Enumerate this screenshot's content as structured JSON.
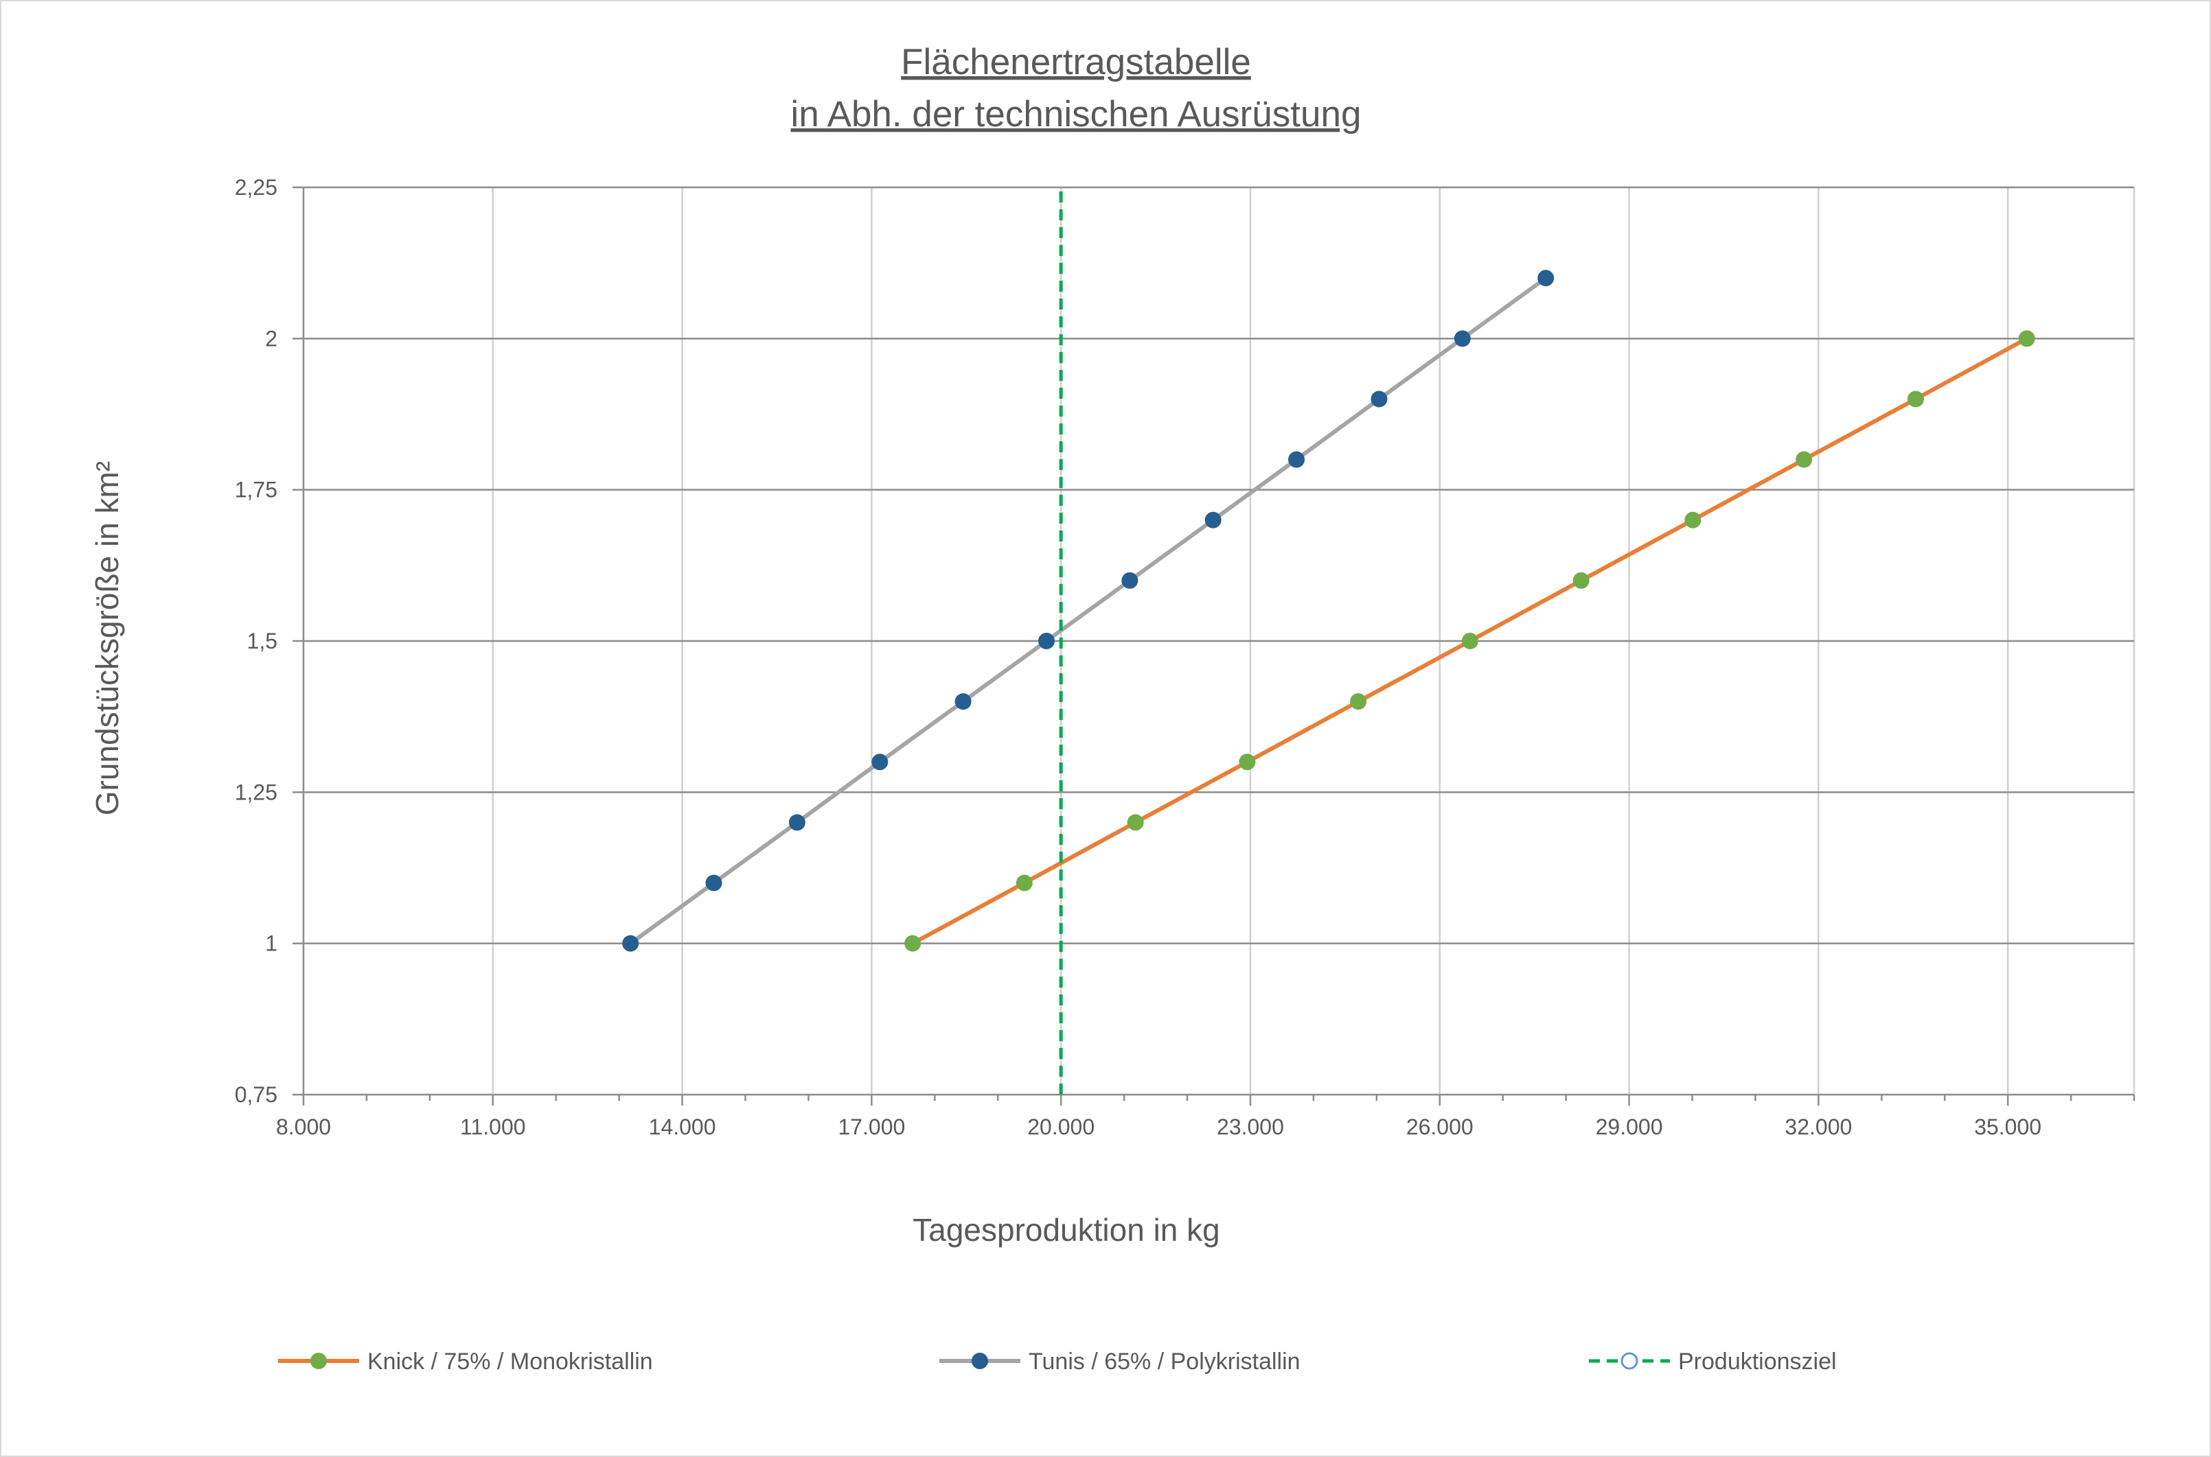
{
  "chart_data": {
    "type": "line",
    "title_lines": [
      "Flächenertragstabelle",
      "in Abh. der technischen Ausrüstung"
    ],
    "xlabel": "Tagesproduktion in kg",
    "ylabel": "Grundstücksgröße in km²",
    "xlim": [
      8000,
      37000
    ],
    "ylim": [
      0.75,
      2.25
    ],
    "x_ticks": [
      8000,
      11000,
      14000,
      17000,
      20000,
      23000,
      26000,
      29000,
      32000,
      35000
    ],
    "x_tick_labels": [
      "8.000",
      "11.000",
      "14.000",
      "17.000",
      "20.000",
      "23.000",
      "26.000",
      "29.000",
      "32.000",
      "35.000"
    ],
    "y_ticks": [
      0.75,
      1,
      1.25,
      1.5,
      1.75,
      2,
      2.25
    ],
    "y_tick_labels": [
      "0,75",
      "1",
      "1,25",
      "1,5",
      "1,75",
      "2",
      "2,25"
    ],
    "grid": true,
    "legend_position": "bottom",
    "series": [
      {
        "name": "Knick / 75% / Monokristallin",
        "line_color": "#ed7d31",
        "marker_color": "#70ad47",
        "x": [
          17650,
          19420,
          21180,
          22950,
          24710,
          26480,
          28240,
          30010,
          31770,
          33540,
          35300
        ],
        "y": [
          1.0,
          1.1,
          1.2,
          1.3,
          1.4,
          1.5,
          1.6,
          1.7,
          1.8,
          1.9,
          2.0
        ]
      },
      {
        "name": "Tunis / 65% /  Polykristallin",
        "line_color": "#a5a5a5",
        "marker_color": "#255e91",
        "x": [
          13180,
          14500,
          15820,
          17130,
          18450,
          19770,
          21090,
          22410,
          23730,
          25040,
          26360,
          27680
        ],
        "y": [
          1.0,
          1.1,
          1.2,
          1.3,
          1.4,
          1.5,
          1.6,
          1.7,
          1.8,
          1.9,
          2.0,
          2.1
        ]
      },
      {
        "name": "Produktionsziel",
        "line_color": "#00b050",
        "line_style": "dashed",
        "x": [
          20000,
          20000
        ],
        "y": [
          0.75,
          2.25
        ]
      }
    ]
  }
}
